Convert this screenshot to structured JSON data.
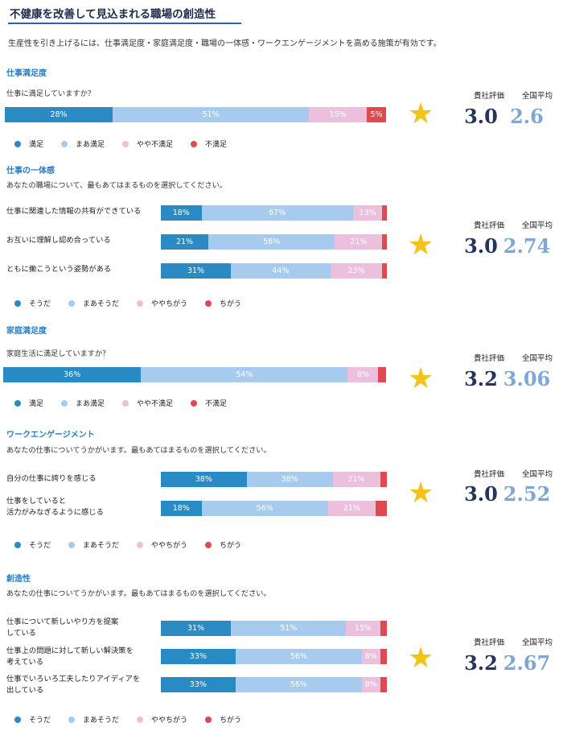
{
  "title": "不健康を改善して見込まれる職場の創造性",
  "intro": "生産性を引き上げるには、仕事満足度・家庭満足度・職場の一体感・ワークエンゲージメントを高める施策が有効です。",
  "colors": {
    "series_0": "#2a8ac4",
    "series_1": "#a6cbee",
    "series_2": "#ecc0dd",
    "series_3": "#e0494f",
    "star": "#f3c31a",
    "our_score": "#23345e",
    "national_score": "#7ea7d8",
    "section_title": "#2c7cc4"
  },
  "score_labels": {
    "ours": "貴社評価",
    "national": "全国平均"
  },
  "chart_data": [
    {
      "type": "bar",
      "orientation": "horizontal-stacked-percent",
      "title": "仕事満足度",
      "question": "仕事に満足していますか？",
      "legend": [
        "満足",
        "まあ満足",
        "やや不満足",
        "不満足"
      ],
      "rows": [
        {
          "label": "",
          "values": [
            28,
            51,
            15,
            5
          ],
          "shown": [
            "28%",
            "51%",
            "15%",
            "5%"
          ]
        }
      ],
      "score": "3.0",
      "national": "2.6"
    },
    {
      "type": "bar",
      "orientation": "horizontal-stacked-percent",
      "title": "仕事の一体感",
      "question": "あなたの職場について、最もあてはまるものを選択してください。",
      "legend": [
        "そうだ",
        "まあそうだ",
        "ややちがう",
        "ちがう"
      ],
      "rows": [
        {
          "label": "仕事に関連した情報の共有ができている",
          "values": [
            18,
            67,
            13,
            2
          ],
          "shown": [
            "18%",
            "67%",
            "13%",
            ""
          ]
        },
        {
          "label": "お互いに理解し認め合っている",
          "values": [
            21,
            56,
            21,
            2
          ],
          "shown": [
            "21%",
            "56%",
            "21%",
            ""
          ]
        },
        {
          "label": "ともに働こうという姿勢がある",
          "values": [
            31,
            44,
            23,
            2
          ],
          "shown": [
            "31%",
            "44%",
            "23%",
            ""
          ]
        }
      ],
      "score": "3.0",
      "national": "2.74"
    },
    {
      "type": "bar",
      "orientation": "horizontal-stacked-percent",
      "title": "家庭満足度",
      "question": "家庭生活に満足していますか？",
      "legend": [
        "満足",
        "まあ満足",
        "やや不満足",
        "不満足"
      ],
      "rows": [
        {
          "label": "",
          "values": [
            36,
            54,
            8,
            2
          ],
          "shown": [
            "36%",
            "54%",
            "8%",
            ""
          ]
        }
      ],
      "score": "3.2",
      "national": "3.06"
    },
    {
      "type": "bar",
      "orientation": "horizontal-stacked-percent",
      "title": "ワークエンゲージメント",
      "question": "あなたの仕事についてうかがいます。最もあてはまるものを選択してください。",
      "legend": [
        "そうだ",
        "まあそうだ",
        "ややちがう",
        "ちがう"
      ],
      "rows": [
        {
          "label": "自分の仕事に誇りを感じる",
          "values": [
            38,
            38,
            21,
            3
          ],
          "shown": [
            "38%",
            "38%",
            "21%",
            ""
          ]
        },
        {
          "label": "仕事をしていると\n活力がみなぎるように感じる",
          "values": [
            18,
            56,
            21,
            5
          ],
          "shown": [
            "18%",
            "56%",
            "21%",
            ""
          ]
        }
      ],
      "score": "3.0",
      "national": "2.52"
    },
    {
      "type": "bar",
      "orientation": "horizontal-stacked-percent",
      "title": "創造性",
      "question": "あなたの仕事についてうかがいます。最もあてはまるものを選択してください。",
      "legend": [
        "そうだ",
        "まあそうだ",
        "ややちがう",
        "ちがう"
      ],
      "rows": [
        {
          "label": "仕事について新しいやり方を提案\nしている",
          "values": [
            31,
            51,
            15,
            3
          ],
          "shown": [
            "31%",
            "51%",
            "15%",
            ""
          ]
        },
        {
          "label": "仕事上の問題に対して新しい解決策を\n考えている",
          "values": [
            33,
            56,
            8,
            3
          ],
          "shown": [
            "33%",
            "56%",
            "8%",
            ""
          ]
        },
        {
          "label": "仕事でいろいろ工夫したりアイディアを\n出している",
          "values": [
            33,
            56,
            8,
            3
          ],
          "shown": [
            "33%",
            "56%",
            "8%",
            ""
          ]
        }
      ],
      "score": "3.2",
      "national": "2.67"
    }
  ]
}
